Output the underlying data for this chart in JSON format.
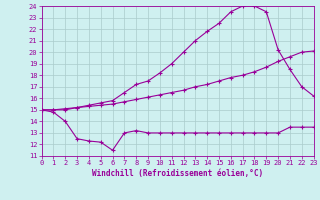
{
  "xlabel": "Windchill (Refroidissement éolien,°C)",
  "bg_color": "#cff0f0",
  "grid_color": "#aacccc",
  "line_color": "#990099",
  "xmin": 0,
  "xmax": 23,
  "ymin": 11,
  "ymax": 24,
  "curve1_x": [
    0,
    1,
    2,
    3,
    4,
    5,
    6,
    7,
    8,
    9,
    10,
    11,
    12,
    13,
    14,
    15,
    16,
    17,
    18,
    19,
    20,
    21,
    22,
    23
  ],
  "curve1_y": [
    15.0,
    14.8,
    14.0,
    12.5,
    12.3,
    12.2,
    11.5,
    13.0,
    13.2,
    13.0,
    13.0,
    13.0,
    13.0,
    13.0,
    13.0,
    13.0,
    13.0,
    13.0,
    13.0,
    13.0,
    13.0,
    13.5,
    13.5,
    13.5
  ],
  "curve2_x": [
    0,
    1,
    2,
    3,
    4,
    5,
    6,
    7,
    8,
    9,
    10,
    11,
    12,
    13,
    14,
    15,
    16,
    17,
    18,
    19,
    20,
    21,
    22,
    23
  ],
  "curve2_y": [
    15.0,
    15.0,
    15.1,
    15.2,
    15.3,
    15.4,
    15.5,
    15.7,
    15.9,
    16.1,
    16.3,
    16.5,
    16.7,
    17.0,
    17.2,
    17.5,
    17.8,
    18.0,
    18.3,
    18.7,
    19.2,
    19.6,
    20.0,
    20.1
  ],
  "curve3_x": [
    0,
    1,
    2,
    3,
    4,
    5,
    6,
    7,
    8,
    9,
    10,
    11,
    12,
    13,
    14,
    15,
    16,
    17,
    18,
    19,
    20,
    21,
    22,
    23
  ],
  "curve3_y": [
    15.0,
    15.0,
    15.0,
    15.2,
    15.4,
    15.6,
    15.8,
    16.5,
    17.2,
    17.5,
    18.2,
    19.0,
    20.0,
    21.0,
    21.8,
    22.5,
    23.5,
    24.0,
    24.0,
    23.5,
    20.2,
    18.5,
    17.0,
    16.2
  ],
  "yticks": [
    11,
    12,
    13,
    14,
    15,
    16,
    17,
    18,
    19,
    20,
    21,
    22,
    23,
    24
  ],
  "xticks": [
    0,
    1,
    2,
    3,
    4,
    5,
    6,
    7,
    8,
    9,
    10,
    11,
    12,
    13,
    14,
    15,
    16,
    17,
    18,
    19,
    20,
    21,
    22,
    23
  ],
  "xlabel_fontsize": 5.5,
  "tick_fontsize": 5
}
